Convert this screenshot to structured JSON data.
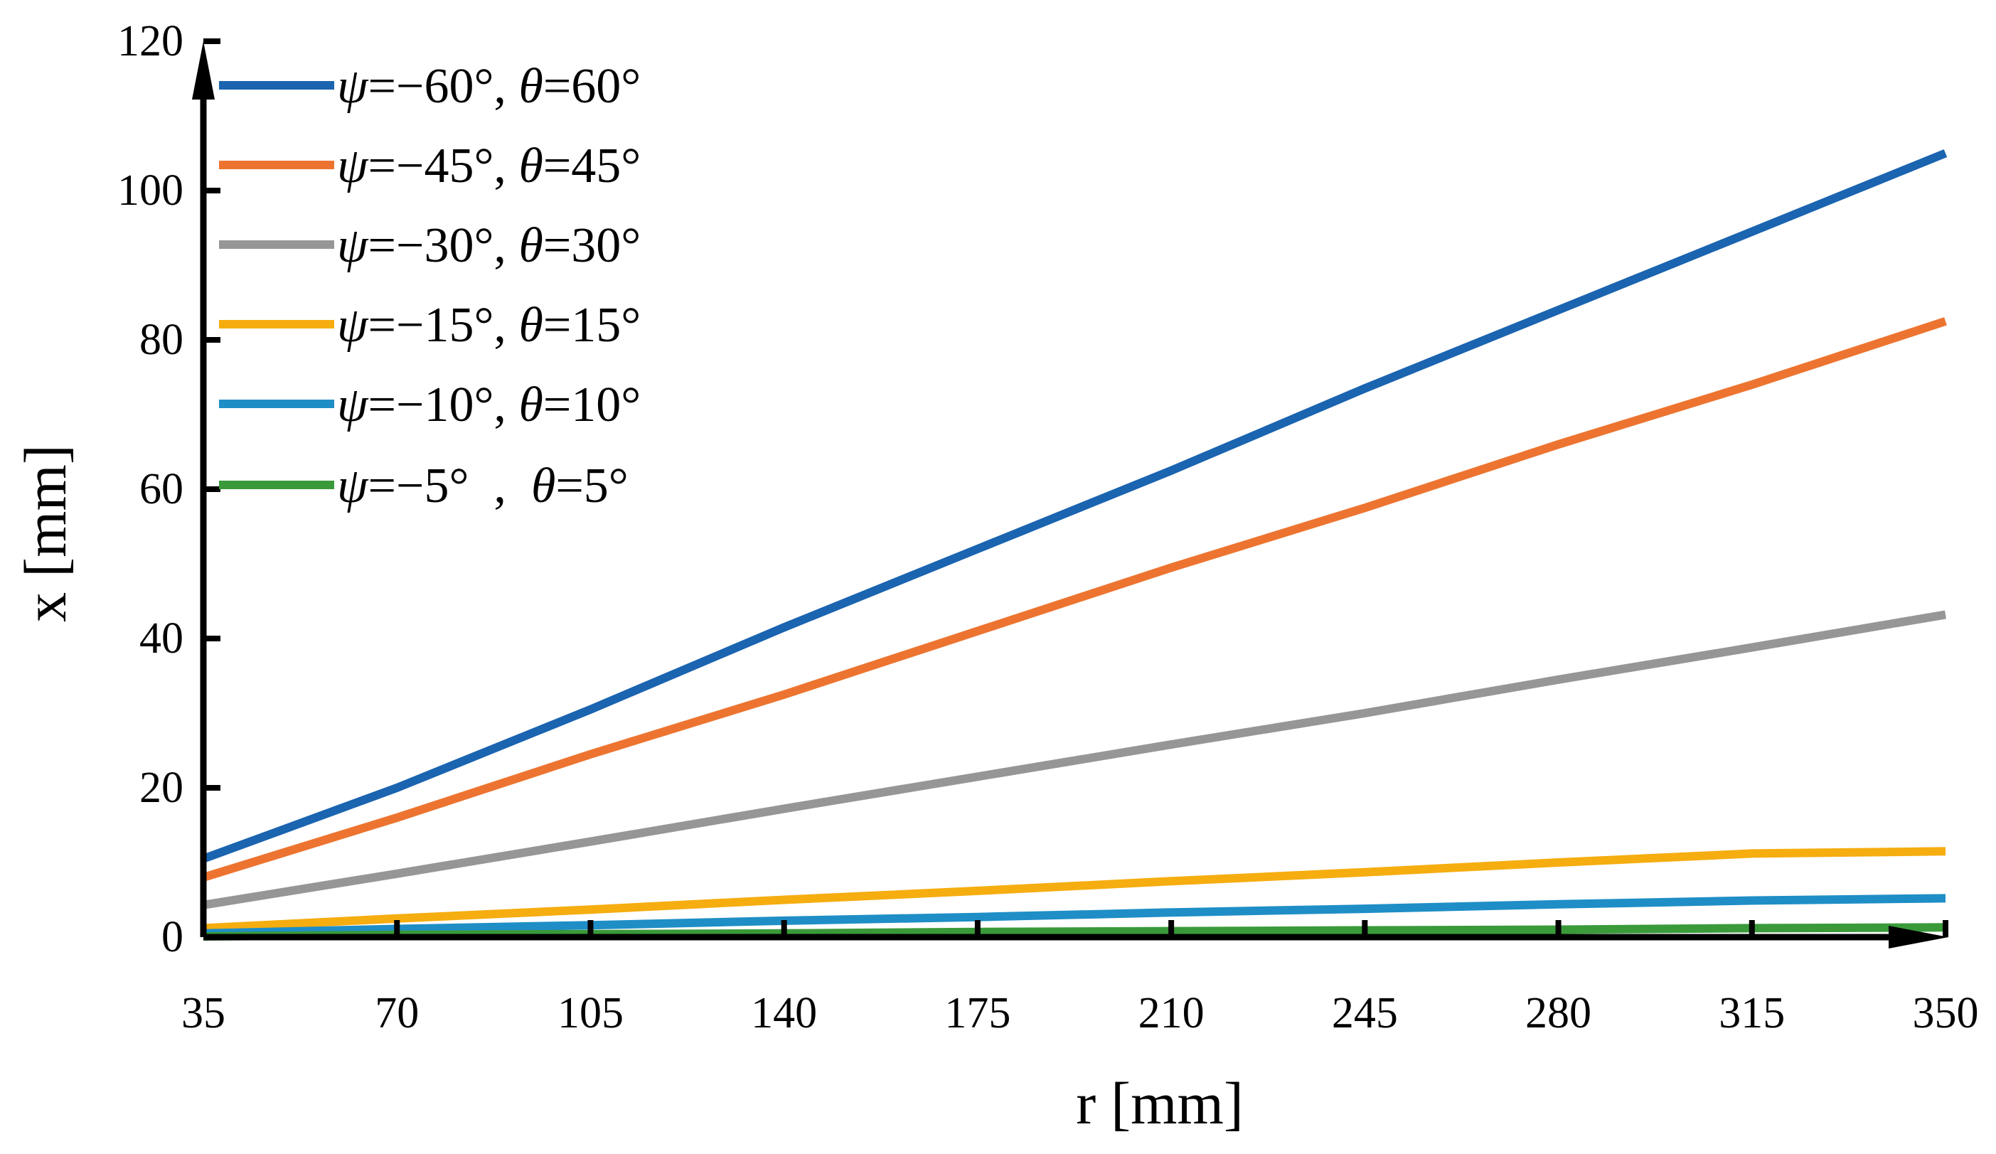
{
  "chart_data": {
    "type": "line",
    "title": "",
    "xlabel": "r [mm]",
    "ylabel": "x [mm]",
    "x": [
      35,
      70,
      105,
      140,
      175,
      210,
      245,
      280,
      315,
      350
    ],
    "xticks": [
      "35",
      "70",
      "105",
      "140",
      "175",
      "210",
      "245",
      "280",
      "315",
      "350"
    ],
    "yticks": [
      "0",
      "20",
      "40",
      "60",
      "80",
      "100",
      "120"
    ],
    "xlim": [
      35,
      350
    ],
    "ylim": [
      0,
      120
    ],
    "grid": false,
    "legend_position": "top-left",
    "series": [
      {
        "name": "ψ=−60°, θ=60°",
        "psi": "ψ",
        "psi_value": "=−60°, ",
        "theta": "θ",
        "theta_value": "=60°",
        "color": "#1a64b0",
        "values": [
          10.5,
          20.0,
          30.5,
          41.5,
          52.0,
          62.5,
          73.5,
          84.0,
          94.5,
          105.0
        ]
      },
      {
        "name": "ψ=−45°, θ=45°",
        "psi": "ψ",
        "psi_value": "=−45°, ",
        "theta": "θ",
        "theta_value": "=45°",
        "color": "#ed7430",
        "values": [
          8.0,
          16.0,
          24.5,
          32.5,
          41.0,
          49.5,
          57.5,
          66.0,
          74.0,
          82.5
        ]
      },
      {
        "name": "ψ=−30°, θ=30°",
        "psi": "ψ",
        "psi_value": "=−30°, ",
        "theta": "θ",
        "theta_value": "=30°",
        "color": "#969696",
        "values": [
          4.3,
          8.5,
          12.8,
          17.2,
          21.5,
          25.8,
          30.0,
          34.5,
          38.8,
          43.2
        ]
      },
      {
        "name": "ψ=−15°, θ=15°",
        "psi": "ψ",
        "psi_value": "=−15°, ",
        "theta": "θ",
        "theta_value": "=15°",
        "color": "#f5ad10",
        "values": [
          1.2,
          2.5,
          3.7,
          5.0,
          6.2,
          7.5,
          8.7,
          10.0,
          11.2,
          11.5
        ]
      },
      {
        "name": "ψ=−10°, θ=10°",
        "psi": "ψ",
        "psi_value": "=−10°, ",
        "theta": "θ",
        "theta_value": "=10°",
        "color": "#1f8ec6",
        "values": [
          0.5,
          1.1,
          1.6,
          2.2,
          2.7,
          3.3,
          3.8,
          4.4,
          4.9,
          5.2
        ]
      },
      {
        "name": "ψ=−5° , θ=5°",
        "psi": "ψ",
        "psi_value": "=−5°  ,  ",
        "theta": "θ",
        "theta_value": "=5°",
        "color": "#3a9a3a",
        "values": [
          0.1,
          0.3,
          0.4,
          0.5,
          0.7,
          0.8,
          0.9,
          1.0,
          1.2,
          1.3
        ]
      }
    ]
  }
}
